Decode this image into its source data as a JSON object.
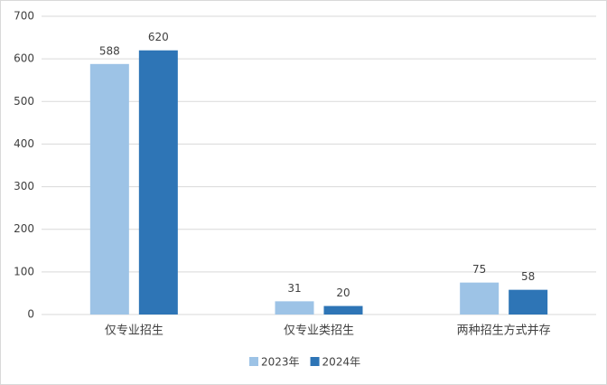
{
  "chart_data": {
    "type": "bar",
    "categories": [
      "仅专业招生",
      "仅专业类招生",
      "两种招生方式并存"
    ],
    "series": [
      {
        "name": "2023年",
        "color": "#9dc3e6",
        "values": [
          588,
          31,
          75
        ]
      },
      {
        "name": "2024年",
        "color": "#2e75b6",
        "values": [
          620,
          20,
          58
        ]
      }
    ],
    "ylim": [
      0,
      700
    ],
    "yticks": [
      0,
      100,
      200,
      300,
      400,
      500,
      600,
      700
    ],
    "grid": true,
    "legend": "bottom",
    "data_labels": true
  }
}
